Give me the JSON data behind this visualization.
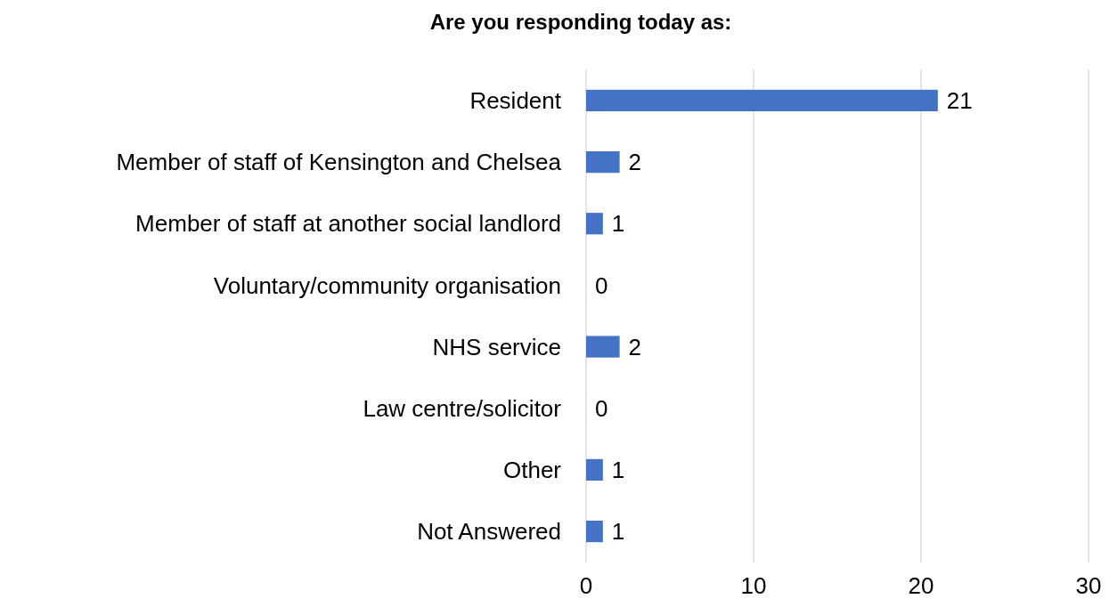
{
  "chart_data": {
    "type": "bar",
    "orientation": "horizontal",
    "title": "Are you responding today as:",
    "categories": [
      "Resident",
      "Member of staff of Kensington and Chelsea",
      "Member of staff at another social landlord",
      "Voluntary/community organisation",
      "NHS service",
      "Law centre/solicitor",
      "Other",
      "Not Answered"
    ],
    "values": [
      21,
      2,
      1,
      0,
      2,
      0,
      1,
      1
    ],
    "color": "#4472c4",
    "xlim": [
      0,
      30
    ],
    "xticks": [
      0,
      10,
      20,
      30
    ],
    "grid": "x",
    "data_labels": true
  }
}
